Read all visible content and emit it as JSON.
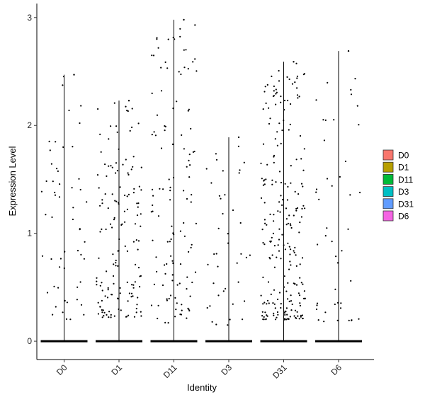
{
  "chart_data": {
    "type": "violin",
    "title": "",
    "xlabel": "Identity",
    "ylabel": "Expression Level",
    "categories": [
      "D0",
      "D1",
      "D11",
      "D3",
      "D31",
      "D6"
    ],
    "ylim": [
      -0.17,
      3.13
    ],
    "yticks": [
      0,
      1,
      2,
      3
    ],
    "max_values": [
      2.47,
      2.23,
      2.98,
      1.89,
      2.59,
      2.69
    ],
    "points_count": [
      55,
      150,
      120,
      40,
      230,
      45
    ],
    "point_ranges": [
      [
        0.2,
        2.47
      ],
      [
        0.22,
        2.23
      ],
      [
        0.17,
        2.98
      ],
      [
        0.15,
        1.89
      ],
      [
        0.2,
        2.59
      ],
      [
        0.18,
        2.69
      ]
    ],
    "grid": false,
    "legend_position": "right",
    "legend": [
      {
        "label": "D0",
        "color": "#F8766D"
      },
      {
        "label": "D1",
        "color": "#B79F00"
      },
      {
        "label": "D11",
        "color": "#00BA38"
      },
      {
        "label": "D3",
        "color": "#00BFC4"
      },
      {
        "label": "D31",
        "color": "#619CFF"
      },
      {
        "label": "D6",
        "color": "#F564E3"
      }
    ]
  }
}
